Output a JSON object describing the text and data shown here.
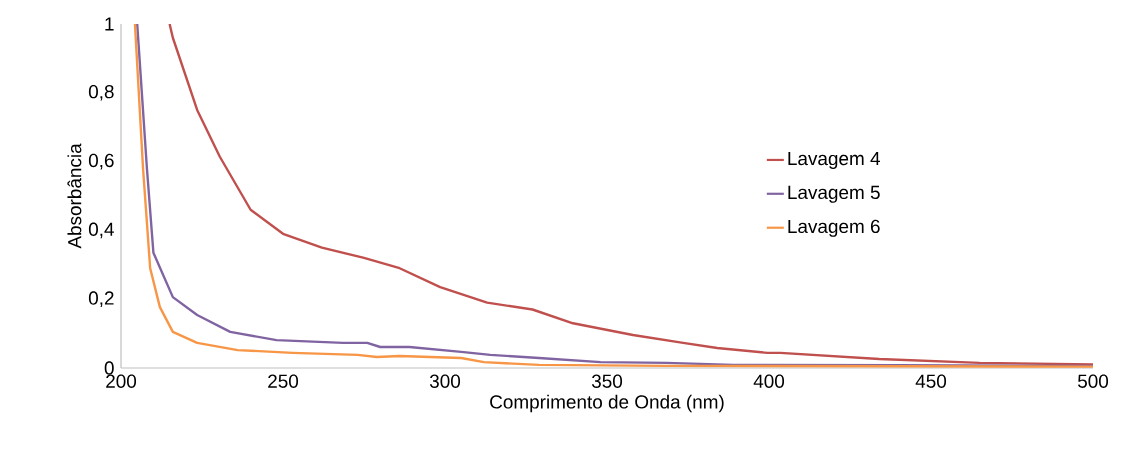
{
  "chart_data": {
    "type": "line",
    "xlabel": "Comprimento de Onda (nm)",
    "ylabel": "Absorbância",
    "xlim": [
      200,
      500
    ],
    "ylim": [
      0,
      1
    ],
    "xticks": [
      200,
      250,
      300,
      350,
      400,
      450,
      500
    ],
    "yticks": [
      0,
      {
        "value": 0.2,
        "label": "0,2"
      },
      {
        "value": 0.4,
        "label": "0,4"
      },
      {
        "value": 0.6,
        "label": "0,6"
      },
      {
        "value": 0.8,
        "label": "0,8"
      },
      1
    ],
    "grid": false,
    "legend": "right",
    "marker": "none",
    "line_style": "solid",
    "series": [
      {
        "name": "Lavagem 4",
        "color": "#c0504d",
        "x": [
          215,
          216,
          223.5,
          230.5,
          240,
          250,
          262,
          275,
          286,
          298.5,
          313,
          327,
          339.5,
          358,
          373.5,
          384,
          399.5,
          403.5,
          434,
          465,
          500
        ],
        "values": [
          1,
          0.96,
          0.75,
          0.614,
          0.46,
          0.39,
          0.35,
          0.32,
          0.29,
          0.235,
          0.19,
          0.17,
          0.13,
          0.096,
          0.073,
          0.058,
          0.044,
          0.044,
          0.026,
          0.015,
          0.01
        ]
      },
      {
        "name": "Lavagem 5",
        "color": "#8064a2",
        "x": [
          205,
          208,
          210,
          216,
          223.5,
          233.7,
          248,
          268.5,
          276,
          280,
          289,
          305,
          314,
          329,
          348,
          368.5,
          389,
          440,
          500
        ],
        "values": [
          1,
          0.58,
          0.335,
          0.206,
          0.154,
          0.105,
          0.081,
          0.073,
          0.073,
          0.061,
          0.061,
          0.047,
          0.038,
          0.029,
          0.017,
          0.015,
          0.009,
          0.008,
          0.006
        ]
      },
      {
        "name": "Lavagem 6",
        "color": "#f79646",
        "x": [
          204.3,
          206.8,
          209,
          212,
          216,
          223.5,
          236,
          253,
          273,
          279,
          286,
          305,
          312,
          329,
          368,
          440,
          500
        ],
        "values": [
          1,
          0.58,
          0.29,
          0.177,
          0.105,
          0.073,
          0.052,
          0.044,
          0.038,
          0.032,
          0.035,
          0.029,
          0.017,
          0.009,
          0.006,
          0.005,
          0.004
        ]
      }
    ]
  }
}
